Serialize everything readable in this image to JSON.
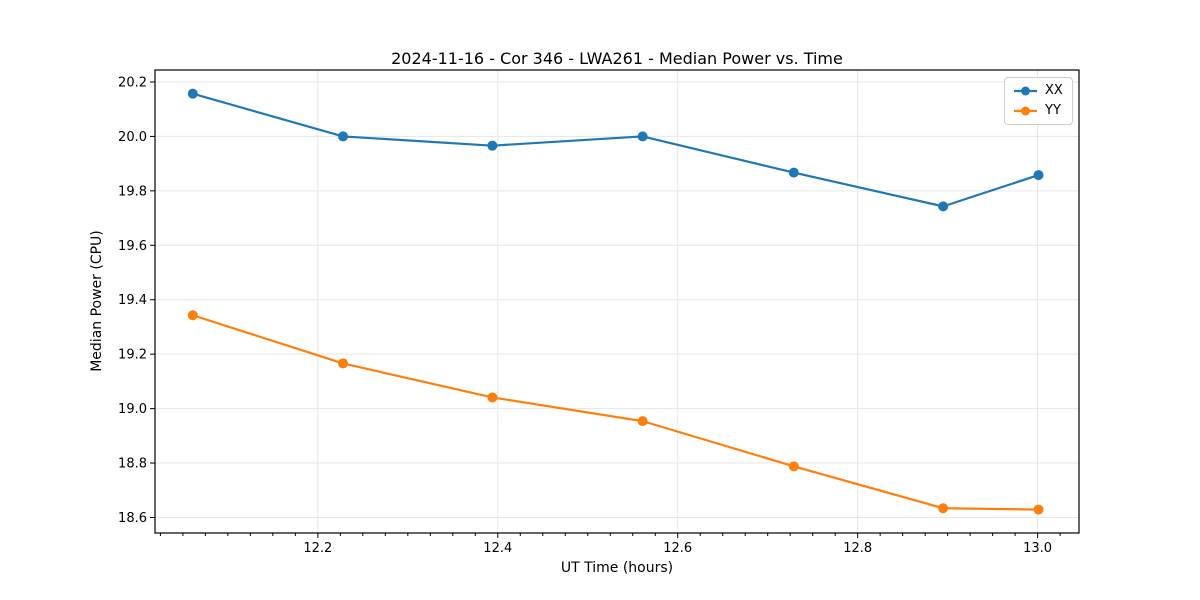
{
  "chart_data": {
    "type": "line",
    "title": "2024-11-16 - Cor 346 - LWA261 - Median Power vs. Time",
    "xlabel": "UT Time (hours)",
    "ylabel": "Median Power (CPU)",
    "x": [
      12.061,
      12.228,
      12.394,
      12.561,
      12.729,
      12.895,
      13.001
    ],
    "series": [
      {
        "name": "XX",
        "color": "#1f77b4",
        "values": [
          20.157,
          20.0,
          19.966,
          20.0,
          19.867,
          19.743,
          19.858
        ]
      },
      {
        "name": "YY",
        "color": "#ff7f0e",
        "values": [
          19.343,
          19.166,
          19.041,
          18.954,
          18.788,
          18.634,
          18.629
        ]
      }
    ],
    "xlim": [
      12.019,
      13.046
    ],
    "ylim": [
      18.543,
      20.244
    ],
    "x_ticks": [
      12.2,
      12.4,
      12.6,
      12.8,
      13.0
    ],
    "x_tick_labels": [
      "12.2",
      "12.4",
      "12.6",
      "12.8",
      "13.0"
    ],
    "x_minor_tick_step": 0.025,
    "y_ticks": [
      18.6,
      18.8,
      19.0,
      19.2,
      19.4,
      19.6,
      19.8,
      20.0,
      20.2
    ],
    "y_tick_labels": [
      "18.6",
      "18.8",
      "19.0",
      "19.2",
      "19.4",
      "19.6",
      "19.8",
      "20.0",
      "20.2"
    ],
    "grid": true,
    "grid_color": "#e6e6e6",
    "spine_color": "#000000",
    "background": "#ffffff",
    "legend_position": "upper right",
    "marker": "o"
  }
}
